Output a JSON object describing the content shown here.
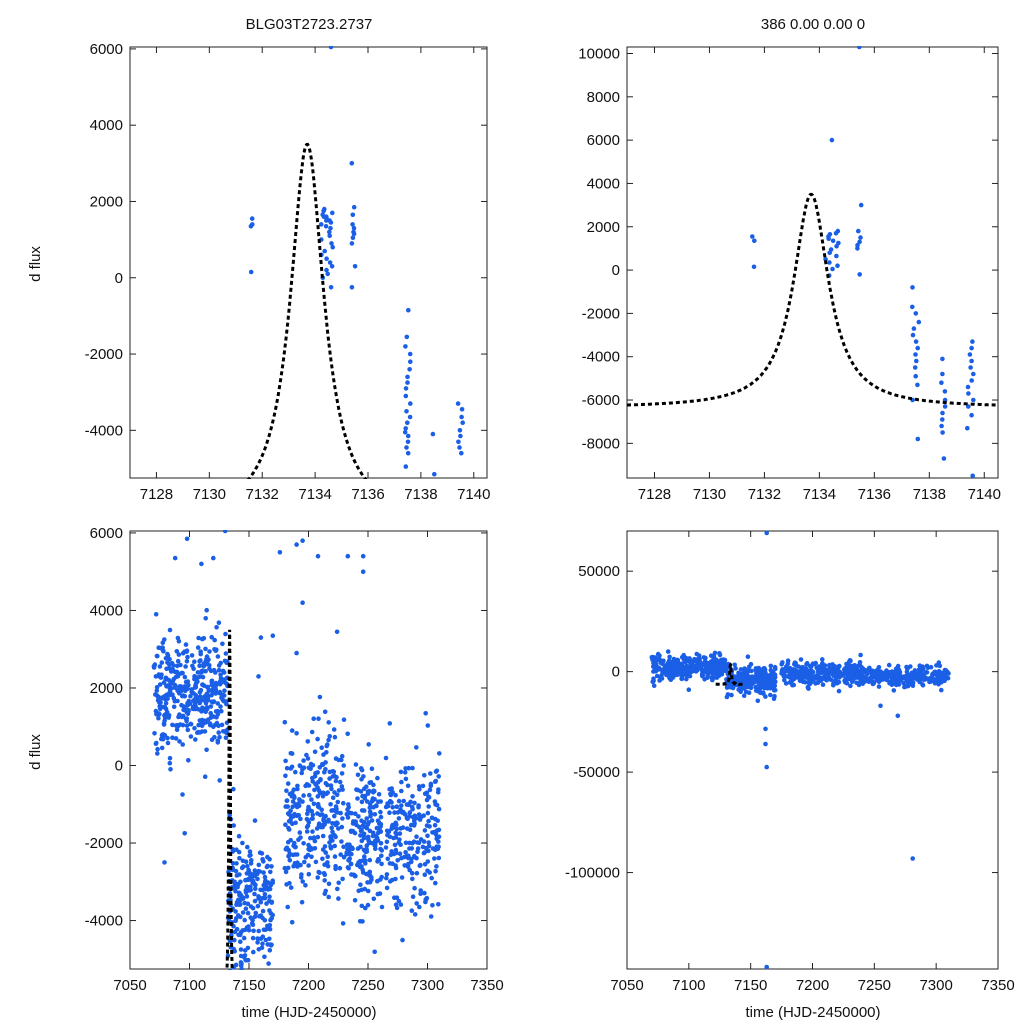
{
  "header": {
    "left_title": "BLG03T2723.2737",
    "right_title": "386  0.00  0.00  0"
  },
  "labels": {
    "ylabel": "d flux",
    "xlabel": "time (HJD-2450000)"
  },
  "colors": {
    "points": "#1a5fe6",
    "model": "#000000"
  },
  "chart_data": [
    {
      "id": "top-left",
      "type": "scatter",
      "title": "BLG03T2723.2737",
      "xlim": [
        7127,
        7140.5
      ],
      "ylim": [
        -5250,
        6050
      ],
      "xticks": [
        7128,
        7130,
        7132,
        7134,
        7136,
        7138,
        7140
      ],
      "yticks": [
        -4000,
        -2000,
        0,
        2000,
        4000,
        6000
      ],
      "ylabel": "d flux",
      "xlabel": "",
      "model": {
        "t0": 7133.7,
        "peak": 3500,
        "base": -6360,
        "tE": 0.775
      },
      "clusters": [
        {
          "x": 7131.6,
          "dx": 0.05,
          "y": [
            1550,
            1350,
            1400,
            150
          ]
        },
        {
          "x": 7134.45,
          "dx": 0.25,
          "y": [
            6050,
            1800,
            1750,
            1650,
            1600,
            1550,
            1500,
            1450,
            1400,
            1350,
            1300,
            1200,
            1100,
            1000,
            900,
            800,
            700,
            600,
            500,
            400,
            300,
            200,
            100,
            0,
            -250,
            1700,
            1600,
            1500
          ]
        },
        {
          "x": 7135.45,
          "dx": 0.08,
          "y": [
            3000,
            1850,
            1650,
            1400,
            1300,
            1200,
            1150,
            1050,
            900,
            300,
            -250
          ]
        },
        {
          "x": 7137.5,
          "dx": 0.1,
          "y": [
            -850,
            -1550,
            -1800,
            -2000,
            -2200,
            -2400,
            -2600,
            -2750,
            -2900,
            -3100,
            -3300,
            -3500,
            -3650,
            -3800,
            -3950,
            -4050,
            -4150,
            -4300,
            -4450,
            -4600,
            -4950
          ]
        },
        {
          "x": 7138.5,
          "dx": 0.05,
          "y": [
            -4100,
            -5150
          ]
        },
        {
          "x": 7139.5,
          "dx": 0.1,
          "y": [
            -3300,
            -3450,
            -3650,
            -3800,
            -4000,
            -4150,
            -4300,
            -4450,
            -4600
          ]
        }
      ]
    },
    {
      "id": "top-right",
      "type": "scatter",
      "title": "386  0.00  0.00  0",
      "xlim": [
        7127,
        7140.5
      ],
      "ylim": [
        -9600,
        10300
      ],
      "xticks": [
        7128,
        7130,
        7132,
        7134,
        7136,
        7138,
        7140
      ],
      "yticks": [
        -8000,
        -6000,
        -4000,
        -2000,
        0,
        2000,
        4000,
        6000,
        8000,
        10000
      ],
      "ylabel": "",
      "xlabel": "",
      "model": {
        "t0": 7133.7,
        "peak": 3500,
        "base": -6360,
        "tE": 0.775
      },
      "clusters": [
        {
          "x": 7131.6,
          "dx": 0.05,
          "y": [
            1550,
            1350,
            150
          ]
        },
        {
          "x": 7134.45,
          "dx": 0.25,
          "y": [
            6000,
            1800,
            1700,
            1650,
            1550,
            1450,
            1350,
            1250,
            1100,
            950,
            800,
            650,
            500,
            350,
            200,
            50,
            -250
          ]
        },
        {
          "x": 7135.45,
          "dx": 0.08,
          "y": [
            10300,
            3000,
            1800,
            1500,
            1300,
            1150,
            1000,
            -200
          ]
        },
        {
          "x": 7137.5,
          "dx": 0.12,
          "y": [
            -800,
            -1700,
            -2000,
            -2400,
            -2700,
            -3000,
            -3300,
            -3600,
            -3900,
            -4200,
            -4500,
            -4900,
            -5300,
            -6000,
            -7800
          ]
        },
        {
          "x": 7138.5,
          "dx": 0.1,
          "y": [
            -4100,
            -4800,
            -5200,
            -5600,
            -6000,
            -6300,
            -6600,
            -6900,
            -7200,
            -7500,
            -8700
          ]
        },
        {
          "x": 7139.5,
          "dx": 0.12,
          "y": [
            -3300,
            -3600,
            -3900,
            -4200,
            -4500,
            -4800,
            -5100,
            -5400,
            -5700,
            -6000,
            -6300,
            -6700,
            -7300,
            -9500
          ]
        }
      ]
    },
    {
      "id": "bottom-left",
      "type": "scatter",
      "title": "",
      "xlim": [
        7050,
        7350
      ],
      "ylim": [
        -5250,
        6050
      ],
      "xticks": [
        7050,
        7100,
        7150,
        7200,
        7250,
        7300,
        7350
      ],
      "yticks": [
        -4000,
        -2000,
        0,
        2000,
        4000,
        6000
      ],
      "ylabel": "d flux",
      "xlabel": "time (HJD-2450000)",
      "model": {
        "t0": 7133.7,
        "peak": 3500,
        "base": -6360,
        "tE": 0.775
      },
      "segments": [
        {
          "x0": 7070,
          "x1": 7132,
          "n": 420,
          "mean": 1900,
          "sd": 800
        },
        {
          "x0": 7132,
          "x1": 7170,
          "n": 260,
          "mean": -3600,
          "sd": 1000
        },
        {
          "x0": 7180,
          "x1": 7230,
          "n": 300,
          "mean": -1300,
          "sd": 1200
        },
        {
          "x0": 7232,
          "x1": 7262,
          "n": 200,
          "mean": -1700,
          "sd": 1100
        },
        {
          "x0": 7265,
          "x1": 7310,
          "n": 240,
          "mean": -1700,
          "sd": 1100
        }
      ],
      "outliers": [
        [
          7072,
          3900
        ],
        [
          7088,
          5350
        ],
        [
          7098,
          5850
        ],
        [
          7110,
          5200
        ],
        [
          7120,
          5350
        ],
        [
          7130,
          6050
        ],
        [
          7176,
          5500
        ],
        [
          7190,
          5700
        ],
        [
          7195,
          5800
        ],
        [
          7208,
          5400
        ],
        [
          7233,
          5400
        ],
        [
          7246,
          5400
        ],
        [
          7246,
          5000
        ],
        [
          7160,
          3300
        ],
        [
          7170,
          3350
        ],
        [
          7190,
          2900
        ],
        [
          7195,
          4200
        ],
        [
          7224,
          3450
        ],
        [
          7079,
          -2500
        ],
        [
          7096,
          -1750
        ],
        [
          7158,
          2300
        ]
      ]
    },
    {
      "id": "bottom-right",
      "type": "scatter",
      "title": "",
      "xlim": [
        7050,
        7350
      ],
      "ylim": [
        -148000,
        70000
      ],
      "xticks": [
        7050,
        7100,
        7150,
        7200,
        7250,
        7300,
        7350
      ],
      "yticks": [
        -100000,
        -50000,
        0,
        50000
      ],
      "ylabel": "",
      "xlabel": "time (HJD-2450000)",
      "model": {
        "t0": 7133.7,
        "peak": 3500,
        "base": -6360,
        "tE": 0.775
      },
      "segments": [
        {
          "x0": 7070,
          "x1": 7130,
          "n": 320,
          "mean": 2000,
          "sd": 3000
        },
        {
          "x0": 7130,
          "x1": 7170,
          "n": 260,
          "mean": -4000,
          "sd": 3500
        },
        {
          "x0": 7175,
          "x1": 7240,
          "n": 300,
          "mean": -1000,
          "sd": 3000
        },
        {
          "x0": 7240,
          "x1": 7310,
          "n": 280,
          "mean": -2500,
          "sd": 2500
        }
      ],
      "outliers": [
        [
          7163,
          69000
        ],
        [
          7163,
          -147000
        ],
        [
          7163,
          -47500
        ],
        [
          7162,
          -36000
        ],
        [
          7162,
          -28500
        ],
        [
          7281,
          -93000
        ],
        [
          7269,
          -22000
        ],
        [
          7255,
          -17000
        ],
        [
          7100,
          -9000
        ],
        [
          7072,
          -7000
        ]
      ]
    }
  ]
}
